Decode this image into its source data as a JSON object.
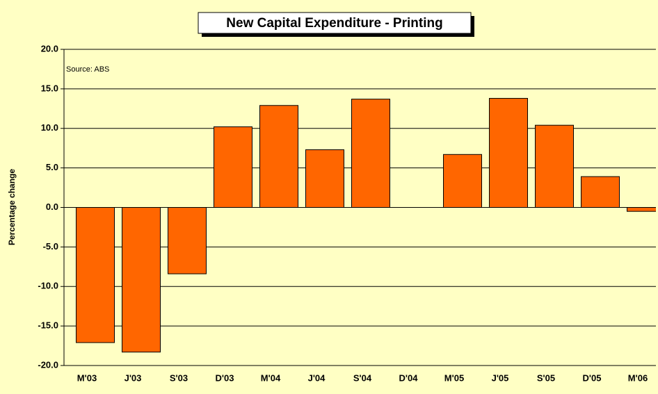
{
  "chart_data": {
    "type": "bar",
    "title": "New Capital Expenditure - Printing",
    "annotation": "Source: ABS",
    "ylabel": "Percentage change",
    "categories": [
      "M'03",
      "J'03",
      "S'03",
      "D'03",
      "M'04",
      "J'04",
      "S'04",
      "D'04",
      "M'05",
      "J'05",
      "S'05",
      "D'05",
      "M'06"
    ],
    "values": [
      -17.1,
      -18.3,
      -8.4,
      10.2,
      12.9,
      7.3,
      13.7,
      0,
      6.7,
      13.8,
      10.4,
      3.9,
      -0.5
    ],
    "color": "#FF6600",
    "ylim": [
      -20,
      20
    ],
    "yticks": [
      {
        "value": -20,
        "label": "-20.0"
      },
      {
        "value": -15,
        "label": "-15.0"
      },
      {
        "value": -10,
        "label": "-10.0"
      },
      {
        "value": -5,
        "label": "-5.0"
      },
      {
        "value": 0,
        "label": "0.0"
      },
      {
        "value": 5,
        "label": "5.0"
      },
      {
        "value": 10,
        "label": "10.0"
      },
      {
        "value": 15,
        "label": "15.0"
      },
      {
        "value": 20,
        "label": "20.0"
      }
    ],
    "grid": true
  }
}
